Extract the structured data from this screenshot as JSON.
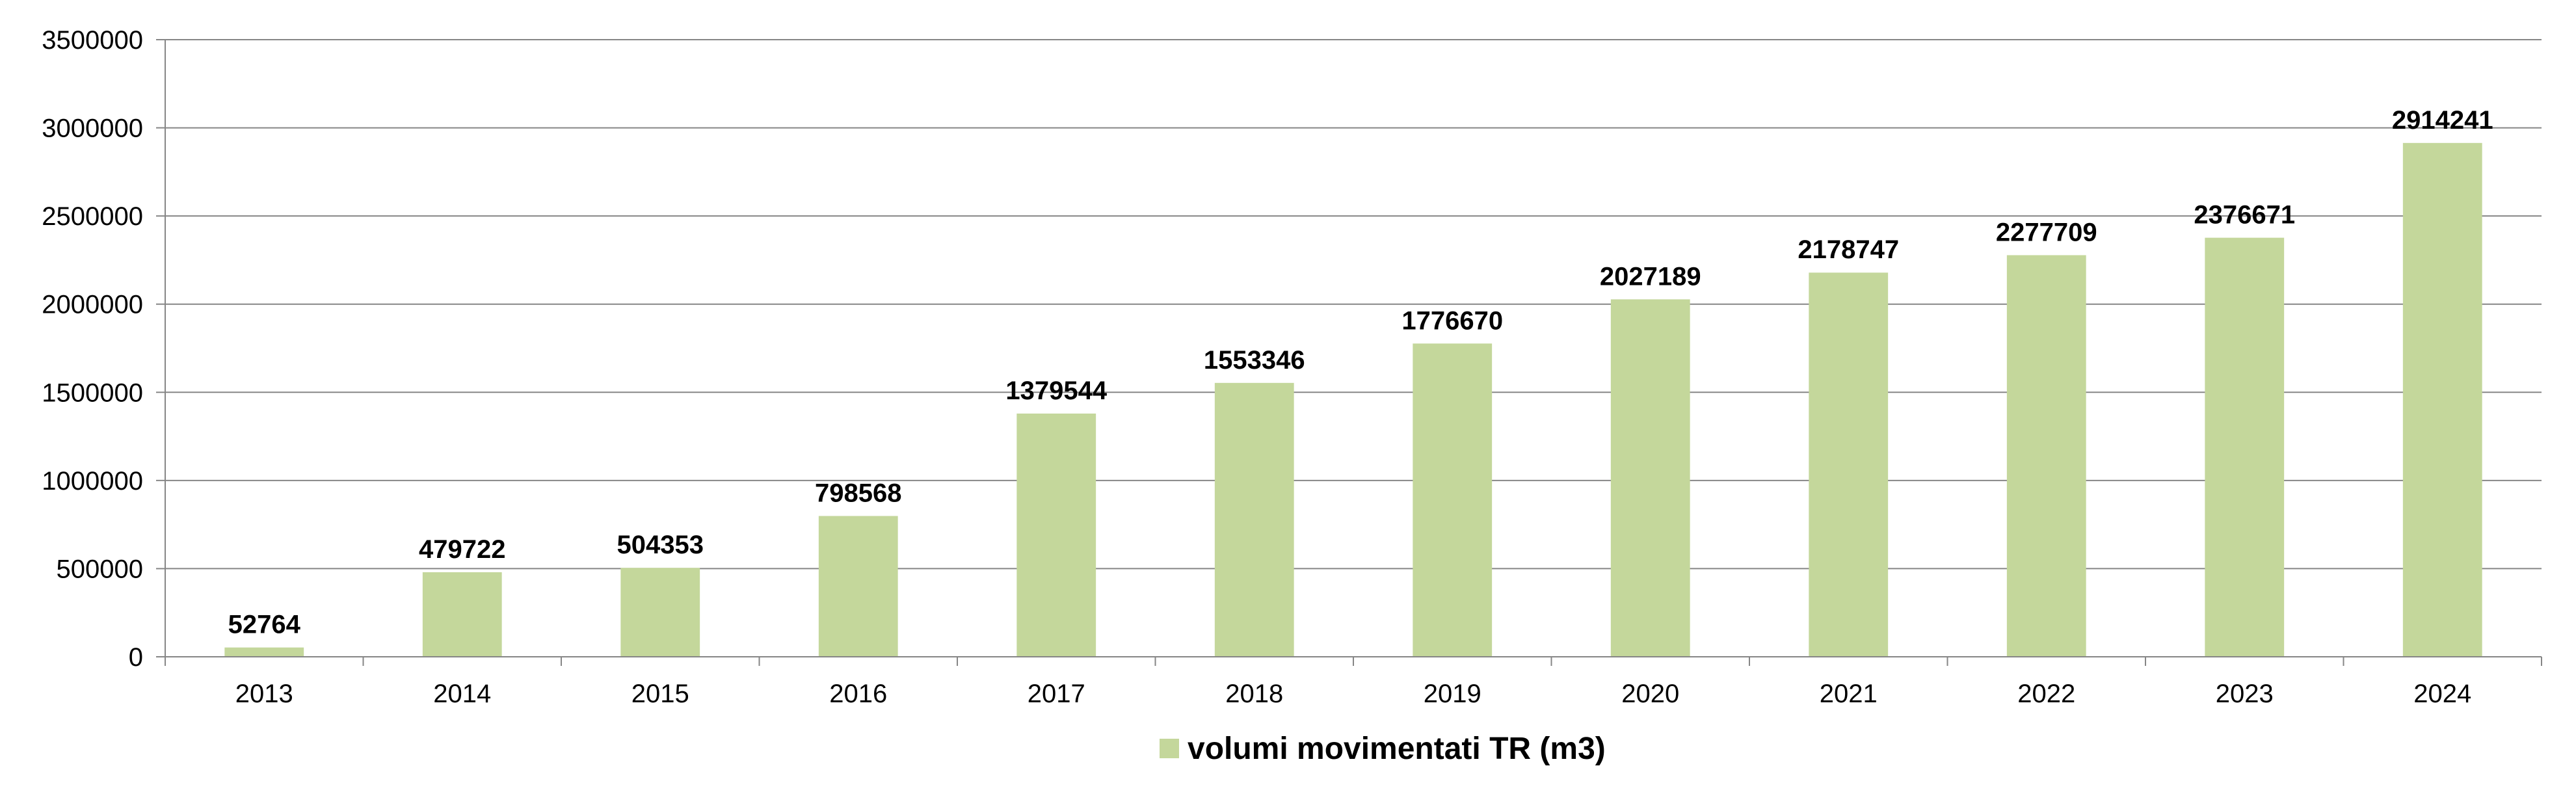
{
  "chart_data": {
    "type": "bar",
    "categories": [
      "2013",
      "2014",
      "2015",
      "2016",
      "2017",
      "2018",
      "2019",
      "2020",
      "2021",
      "2022",
      "2023",
      "2024"
    ],
    "series": [
      {
        "name": "volumi movimentati TR (m3)",
        "values": [
          52764,
          479722,
          504353,
          798568,
          1379544,
          1553346,
          1776670,
          2027189,
          2178747,
          2277709,
          2376671,
          2914241
        ],
        "color": "#c4d79b"
      }
    ],
    "y_ticks": [
      "0",
      "500000",
      "1000000",
      "1500000",
      "2000000",
      "2500000",
      "3000000",
      "3500000"
    ],
    "ylim": [
      0,
      3500000
    ],
    "grid": true,
    "gridline_color": "#868686",
    "data_labels": true,
    "legend_position": "bottom"
  }
}
